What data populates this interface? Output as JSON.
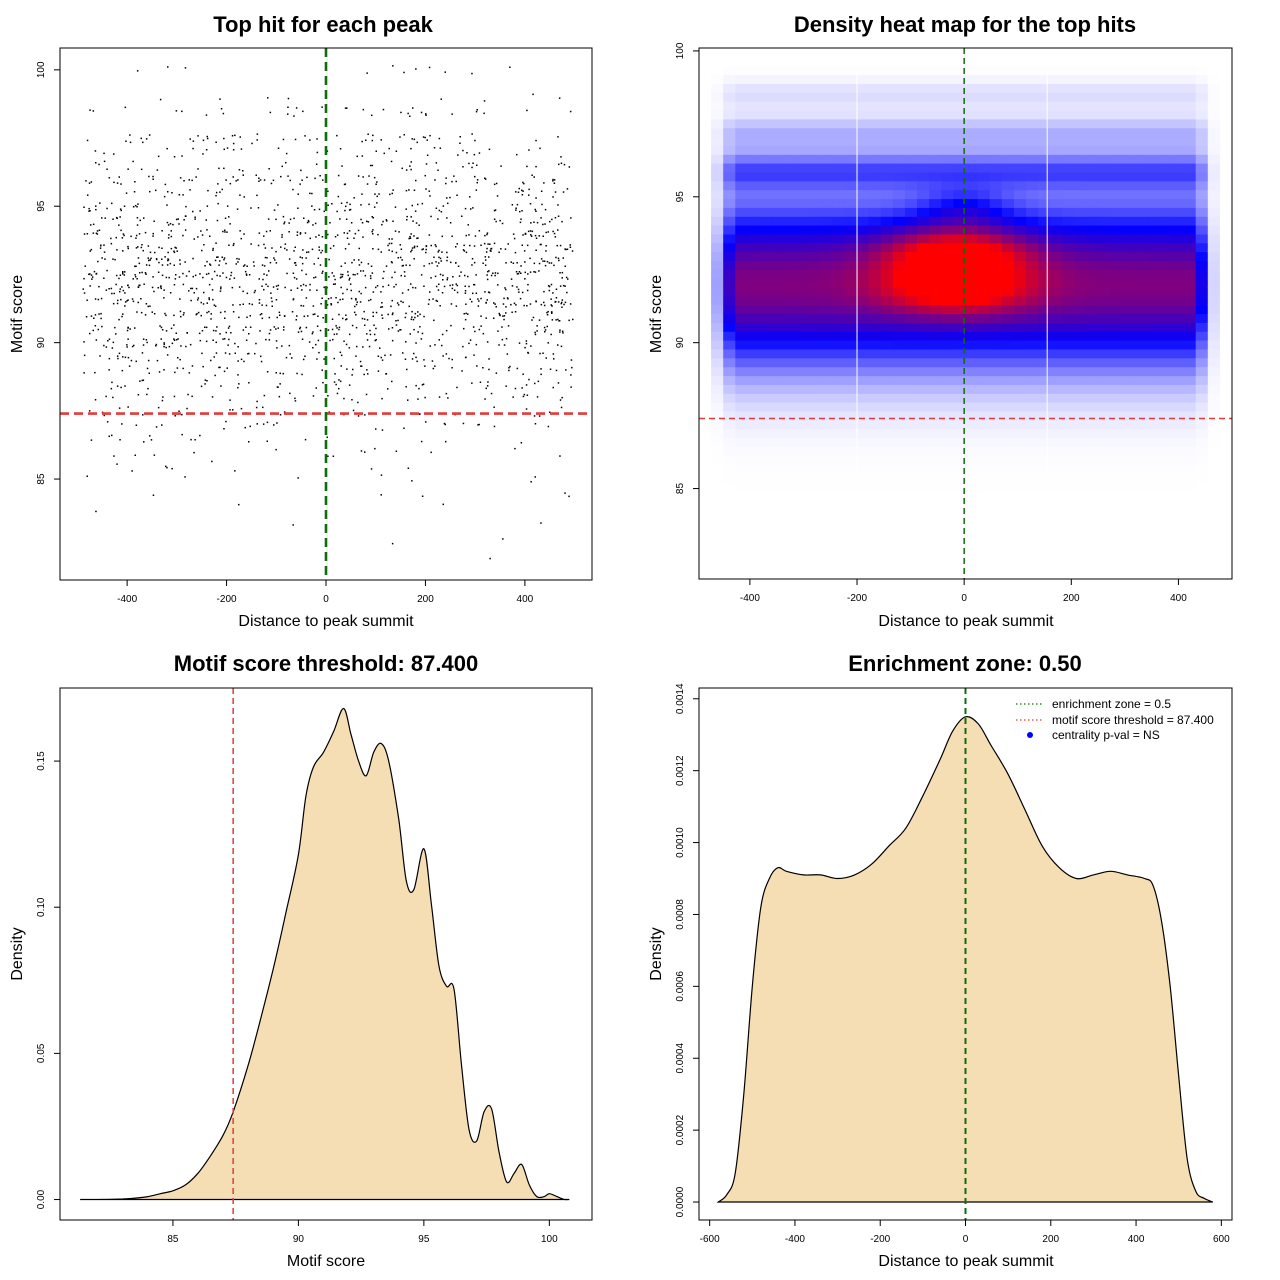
{
  "colors": {
    "threshold_line": "#e23b3b",
    "center_line": "#0b6e0b",
    "density_fill": "#f5deb3",
    "heat_low": "#ffffff",
    "heat_mid": "#0000ff",
    "heat_high": "#ff0000",
    "legend_dot": "#0000ff"
  },
  "chart_data": [
    {
      "type": "scatter",
      "title": "Top hit for each peak",
      "xlabel": "Distance to peak summit",
      "ylabel": "Motif score",
      "xlim": [
        -535,
        535
      ],
      "ylim": [
        81.3,
        100.8
      ],
      "xticks": [
        -400,
        -200,
        0,
        200,
        400
      ],
      "yticks": [
        85,
        90,
        95,
        100
      ],
      "x_tick_labels": [
        "-400",
        "-200",
        "0",
        "200",
        "400"
      ],
      "y_tick_labels": [
        "85",
        "90",
        "95",
        "100"
      ],
      "point_x_range": [
        -490,
        495
      ],
      "score_levels": [
        {
          "score": 100.0,
          "density": 0.07
        },
        {
          "score": 99.0,
          "density": 0.05
        },
        {
          "score": 98.5,
          "density": 0.22
        },
        {
          "score": 97.5,
          "density": 0.34
        },
        {
          "score": 97.0,
          "density": 0.26
        },
        {
          "score": 96.5,
          "density": 0.28
        },
        {
          "score": 96.0,
          "density": 0.5
        },
        {
          "score": 95.5,
          "density": 0.4
        },
        {
          "score": 95.0,
          "density": 0.5
        },
        {
          "score": 94.5,
          "density": 0.6
        },
        {
          "score": 94.0,
          "density": 0.75
        },
        {
          "score": 93.5,
          "density": 0.88
        },
        {
          "score": 93.0,
          "density": 0.93
        },
        {
          "score": 92.5,
          "density": 0.95
        },
        {
          "score": 92.0,
          "density": 0.93
        },
        {
          "score": 91.5,
          "density": 0.9
        },
        {
          "score": 91.0,
          "density": 0.82
        },
        {
          "score": 90.5,
          "density": 0.72
        },
        {
          "score": 90.0,
          "density": 0.62
        },
        {
          "score": 89.5,
          "density": 0.5
        },
        {
          "score": 89.0,
          "density": 0.42
        },
        {
          "score": 88.5,
          "density": 0.34
        },
        {
          "score": 88.0,
          "density": 0.28
        },
        {
          "score": 87.5,
          "density": 0.22
        },
        {
          "score": 87.0,
          "density": 0.17
        },
        {
          "score": 86.5,
          "density": 0.12
        },
        {
          "score": 86.0,
          "density": 0.09
        },
        {
          "score": 85.5,
          "density": 0.06
        },
        {
          "score": 85.0,
          "density": 0.045
        },
        {
          "score": 84.5,
          "density": 0.03
        },
        {
          "score": 84.0,
          "density": 0.02
        },
        {
          "score": 83.5,
          "density": 0.012
        },
        {
          "score": 83.0,
          "density": 0.008
        },
        {
          "score": 82.5,
          "density": 0.005
        },
        {
          "score": 82.0,
          "density": 0.004
        }
      ],
      "hlines": [
        {
          "y": 87.4,
          "role": "threshold"
        }
      ],
      "vlines": [
        {
          "x": 0,
          "role": "center"
        }
      ]
    },
    {
      "type": "heatmap",
      "title": "Density heat map for the top hits",
      "xlabel": "Distance to peak summit",
      "ylabel": "Motif score",
      "xlim": [
        -495,
        500
      ],
      "ylim": [
        81.9,
        100.1
      ],
      "xticks": [
        -400,
        -200,
        0,
        200,
        400
      ],
      "yticks": [
        85,
        90,
        95,
        100
      ],
      "x_tick_labels": [
        "-400",
        "-200",
        "0",
        "200",
        "400"
      ],
      "y_tick_labels": [
        "85",
        "90",
        "95",
        "100"
      ],
      "bands": [
        {
          "y": 92.0,
          "sigma": 1.9,
          "amp": 1.0
        },
        {
          "y": 95.9,
          "sigma": 0.45,
          "amp": 0.34
        },
        {
          "y": 97.2,
          "sigma": 0.4,
          "amp": 0.17
        },
        {
          "y": 98.5,
          "sigma": 0.35,
          "amp": 0.08
        }
      ],
      "hotspots": [
        {
          "x": -15,
          "y": 93.1,
          "sx": 90,
          "sy": 0.6,
          "amp": 0.75
        },
        {
          "x": -15,
          "y": 91.9,
          "sx": 90,
          "sy": 0.6,
          "amp": 0.65
        },
        {
          "x": 0,
          "y": 94.6,
          "sx": 60,
          "sy": 0.5,
          "amp": 0.25
        }
      ],
      "edge_columns_x": [
        -200,
        155
      ],
      "hlines": [
        {
          "y": 87.4,
          "role": "threshold"
        }
      ],
      "vlines": [
        {
          "x": 0,
          "role": "center"
        }
      ]
    },
    {
      "type": "area",
      "title": "Motif score threshold: 87.400",
      "xlabel": "Motif score",
      "ylabel": "Density",
      "xlim": [
        80.5,
        101.7
      ],
      "ylim": [
        -0.007,
        0.175
      ],
      "xticks": [
        85,
        90,
        95,
        100
      ],
      "yticks": [
        0,
        0.05,
        0.1,
        0.15
      ],
      "x_tick_labels": [
        "85",
        "90",
        "95",
        "100"
      ],
      "y_tick_labels": [
        "0.00",
        "0.05",
        "0.10",
        "0.15"
      ],
      "x": [
        81.3,
        82,
        83,
        83.5,
        84,
        84.5,
        85,
        85.5,
        86,
        86.5,
        87,
        87.4,
        88,
        88.5,
        89,
        89.5,
        90,
        90.3,
        90.6,
        91,
        91.4,
        91.8,
        92.1,
        92.4,
        92.7,
        93.0,
        93.3,
        93.6,
        94.0,
        94.3,
        94.6,
        95.0,
        95.3,
        95.6,
        95.9,
        96.2,
        96.5,
        96.8,
        97.1,
        97.4,
        97.7,
        98.0,
        98.3,
        98.6,
        98.9,
        99.2,
        99.5,
        99.8,
        100.0,
        100.3,
        100.6,
        100.8
      ],
      "y": [
        0.0,
        0.0,
        0.0002,
        0.0005,
        0.001,
        0.002,
        0.003,
        0.005,
        0.009,
        0.015,
        0.022,
        0.03,
        0.046,
        0.062,
        0.079,
        0.098,
        0.118,
        0.138,
        0.148,
        0.153,
        0.16,
        0.168,
        0.159,
        0.15,
        0.145,
        0.153,
        0.156,
        0.15,
        0.13,
        0.109,
        0.106,
        0.12,
        0.101,
        0.08,
        0.073,
        0.072,
        0.046,
        0.024,
        0.02,
        0.03,
        0.031,
        0.016,
        0.006,
        0.009,
        0.012,
        0.005,
        0.001,
        0.001,
        0.002,
        0.001,
        0.0,
        0.0
      ],
      "vlines": [
        {
          "x": 87.4,
          "role": "threshold"
        }
      ]
    },
    {
      "type": "area",
      "title": "Enrichment zone: 0.50",
      "xlabel": "Distance to peak summit",
      "ylabel": "Density",
      "xlim": [
        -625,
        625
      ],
      "ylim": [
        -5e-05,
        0.00143
      ],
      "xticks": [
        -600,
        -400,
        -200,
        0,
        200,
        400,
        600
      ],
      "yticks": [
        0,
        0.0002,
        0.0004,
        0.0006,
        0.0008,
        0.001,
        0.0012,
        0.0014
      ],
      "x_tick_labels": [
        "-600",
        "-400",
        "-200",
        "0",
        "200",
        "400",
        "600"
      ],
      "y_tick_labels": [
        "0.0000",
        "0.0002",
        "0.0004",
        "0.0006",
        "0.0008",
        "0.0010",
        "0.0012",
        "0.0014"
      ],
      "x": [
        -580,
        -560,
        -540,
        -520,
        -500,
        -480,
        -460,
        -440,
        -420,
        -380,
        -340,
        -300,
        -260,
        -220,
        -180,
        -140,
        -100,
        -60,
        -30,
        0,
        30,
        60,
        100,
        140,
        180,
        220,
        260,
        300,
        340,
        380,
        420,
        440,
        460,
        480,
        500,
        520,
        540,
        560,
        580
      ],
      "y": [
        0.0,
        2e-05,
        8e-05,
        0.0003,
        0.0006,
        0.00082,
        0.0009,
        0.00093,
        0.00092,
        0.00091,
        0.00091,
        0.0009,
        0.00091,
        0.00094,
        0.00099,
        0.00104,
        0.00113,
        0.00123,
        0.00131,
        0.00135,
        0.00133,
        0.00127,
        0.00119,
        0.00109,
        0.00099,
        0.00093,
        0.0009,
        0.00091,
        0.00092,
        0.00091,
        0.0009,
        0.00088,
        0.00078,
        0.0006,
        0.00035,
        0.00012,
        3e-05,
        1e-05,
        0.0
      ],
      "vlines": [
        {
          "x": 0,
          "role": "center"
        }
      ],
      "legend": {
        "position": "top-right",
        "entries": [
          {
            "label": "enrichment zone = 0.5",
            "style": "dotted-line",
            "color_key": "center_line"
          },
          {
            "label": "motif score threshold = 87.400",
            "style": "dotted-line",
            "color_key": "threshold_line"
          },
          {
            "label": "centrality p-val = NS",
            "style": "dot",
            "color_key": "legend_dot"
          }
        ]
      }
    }
  ]
}
